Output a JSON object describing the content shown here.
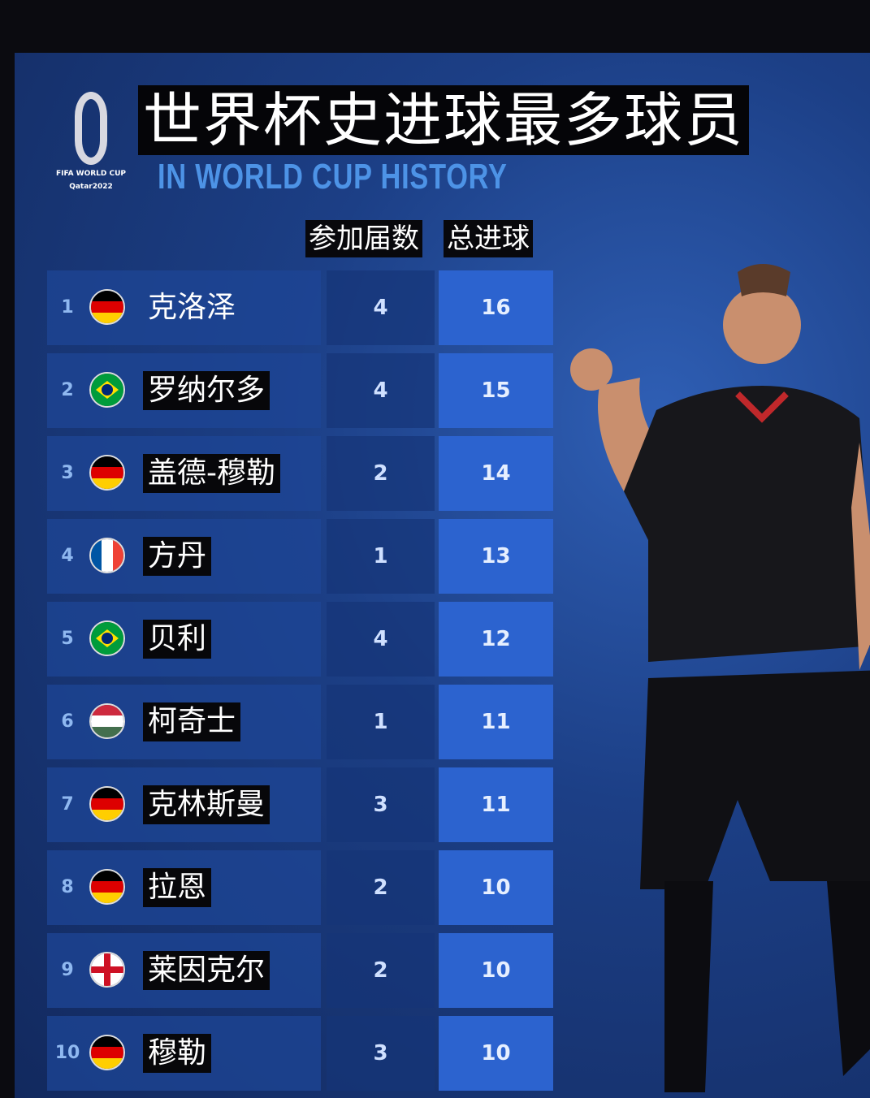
{
  "logo": {
    "line1": "FIFA WORLD CUP",
    "line2": "Qatar2022"
  },
  "title": "世界杯史进球最多球员",
  "subtitle": "IN WORLD CUP HISTORY",
  "colors": {
    "accent": "#2c63cf",
    "subtitle": "#4d93e6",
    "background": "#1c3f86"
  },
  "chart_data": {
    "type": "table",
    "columns": [
      "",
      "",
      "参加届数",
      "总进球"
    ],
    "rows": [
      {
        "rank": "1",
        "flag": "germany",
        "name": "克洛泽",
        "tournaments": 4,
        "goals": 16
      },
      {
        "rank": "2",
        "flag": "brazil",
        "name": "罗纳尔多",
        "tournaments": 4,
        "goals": 15
      },
      {
        "rank": "3",
        "flag": "germany",
        "name": "盖德-穆勒",
        "tournaments": 2,
        "goals": 14
      },
      {
        "rank": "4",
        "flag": "france",
        "name": "方丹",
        "tournaments": 1,
        "goals": 13
      },
      {
        "rank": "5",
        "flag": "brazil",
        "name": "贝利",
        "tournaments": 4,
        "goals": 12
      },
      {
        "rank": "6",
        "flag": "hungary",
        "name": "柯奇士",
        "tournaments": 1,
        "goals": 11
      },
      {
        "rank": "7",
        "flag": "germany",
        "name": "克林斯曼",
        "tournaments": 3,
        "goals": 11
      },
      {
        "rank": "8",
        "flag": "germany",
        "name": "拉恩",
        "tournaments": 2,
        "goals": 10
      },
      {
        "rank": "9",
        "flag": "england",
        "name": "莱因克尔",
        "tournaments": 2,
        "goals": 10
      },
      {
        "rank": "10",
        "flag": "germany",
        "name": "穆勒",
        "tournaments": 3,
        "goals": 10
      }
    ]
  }
}
